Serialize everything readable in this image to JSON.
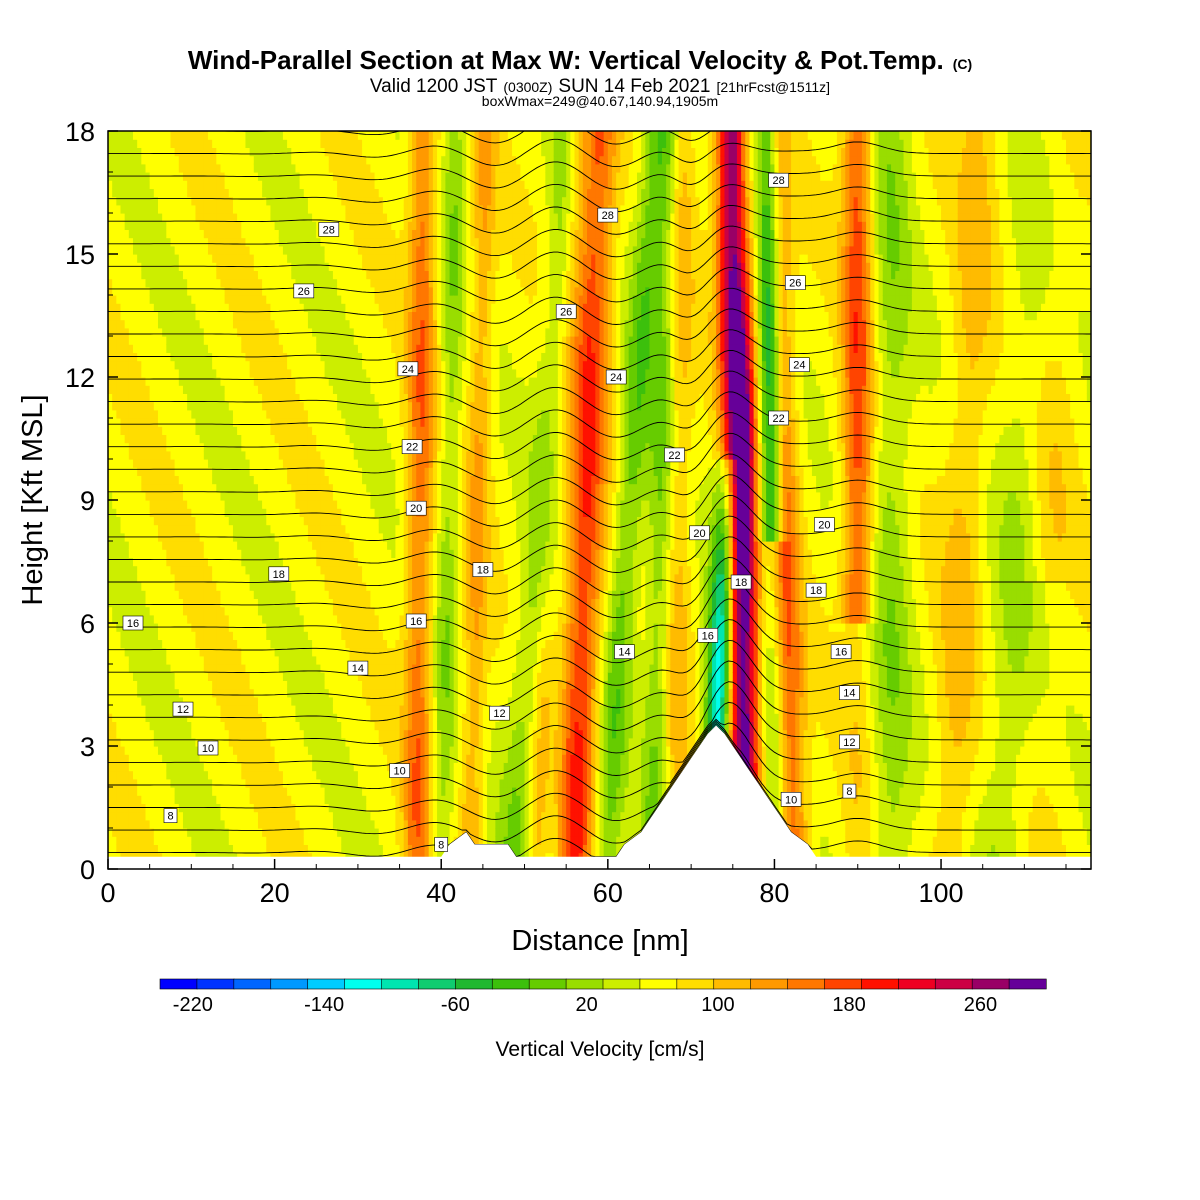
{
  "chart_data": {
    "type": "heatmap",
    "title": "Wind-Parallel Section at Max W: Vertical Velocity & Pot.Temp.",
    "title_mark": "(C)",
    "subtitle_parts": [
      "Valid 1200 JST",
      "(0300Z)",
      "SUN 14 Feb 2021",
      "[21hrFcst@1511z]"
    ],
    "subtitle2": "boxWmax=249@40.67,140.94,1905m",
    "xlabel": "Distance [nm]",
    "ylabel": "Height [Kft MSL]",
    "xlim": [
      0,
      118
    ],
    "ylim": [
      0,
      18
    ],
    "x_ticks": [
      "0",
      "20",
      "40",
      "60",
      "80",
      "100"
    ],
    "y_ticks": [
      "0",
      "3",
      "6",
      "9",
      "12",
      "15",
      "18"
    ],
    "colorbar": {
      "title": "Vertical Velocity [cm/s]",
      "min": -240,
      "max": 300,
      "step": 20,
      "colors": [
        "#0000ff",
        "#0033ff",
        "#0066ff",
        "#0099ff",
        "#00ccff",
        "#00ffee",
        "#00e5b0",
        "#10cc70",
        "#20b830",
        "#3cc00c",
        "#66cc00",
        "#99dd00",
        "#ccee00",
        "#ffff00",
        "#ffdd00",
        "#ffbb00",
        "#ff9900",
        "#ff7700",
        "#ff4400",
        "#ff1100",
        "#ee0022",
        "#cc0044",
        "#990066",
        "#660099"
      ],
      "tick_labels": [
        "-220",
        "-140",
        "-60",
        "20",
        "100",
        "180",
        "260"
      ]
    },
    "terrain_kft": [
      [
        0,
        0.3
      ],
      [
        40,
        0.3
      ],
      [
        41,
        0.6
      ],
      [
        43,
        0.9
      ],
      [
        44,
        0.6
      ],
      [
        48,
        0.6
      ],
      [
        49,
        0.3
      ],
      [
        61,
        0.3
      ],
      [
        62,
        0.6
      ],
      [
        64,
        0.9
      ],
      [
        65,
        1.2
      ],
      [
        66,
        1.5
      ],
      [
        67,
        1.8
      ],
      [
        68,
        2.1
      ],
      [
        69,
        2.4
      ],
      [
        70,
        2.7
      ],
      [
        71,
        3.0
      ],
      [
        72,
        3.3
      ],
      [
        73,
        3.5
      ],
      [
        74,
        3.3
      ],
      [
        75,
        3.0
      ],
      [
        76,
        2.7
      ],
      [
        77,
        2.4
      ],
      [
        78,
        2.1
      ],
      [
        79,
        1.8
      ],
      [
        80,
        1.5
      ],
      [
        81,
        1.2
      ],
      [
        82,
        0.9
      ],
      [
        84,
        0.6
      ],
      [
        85,
        0.3
      ],
      [
        118,
        0.3
      ]
    ],
    "theta_contours": [
      {
        "label": "8",
        "x": 7.5,
        "y": 1.3
      },
      {
        "label": "8",
        "x": 40,
        "y": 0.6
      },
      {
        "label": "8",
        "x": 89,
        "y": 1.9
      },
      {
        "label": "10",
        "x": 12,
        "y": 2.95
      },
      {
        "label": "10",
        "x": 35,
        "y": 2.4
      },
      {
        "label": "10",
        "x": 82,
        "y": 1.7
      },
      {
        "label": "12",
        "x": 9,
        "y": 3.9
      },
      {
        "label": "12",
        "x": 47,
        "y": 3.8
      },
      {
        "label": "12",
        "x": 89,
        "y": 3.1
      },
      {
        "label": "14",
        "x": 30,
        "y": 4.9
      },
      {
        "label": "14",
        "x": 62,
        "y": 5.3
      },
      {
        "label": "14",
        "x": 89,
        "y": 4.3
      },
      {
        "label": "16",
        "x": 3,
        "y": 6.0
      },
      {
        "label": "16",
        "x": 37,
        "y": 6.05
      },
      {
        "label": "16",
        "x": 72,
        "y": 5.7
      },
      {
        "label": "16",
        "x": 88,
        "y": 5.3
      },
      {
        "label": "18",
        "x": 20.5,
        "y": 7.2
      },
      {
        "label": "18",
        "x": 45,
        "y": 7.3
      },
      {
        "label": "18",
        "x": 76,
        "y": 7.0
      },
      {
        "label": "18",
        "x": 85,
        "y": 6.8
      },
      {
        "label": "20",
        "x": 37,
        "y": 8.8
      },
      {
        "label": "20",
        "x": 71,
        "y": 8.2
      },
      {
        "label": "20",
        "x": 86,
        "y": 8.4
      },
      {
        "label": "22",
        "x": 36.5,
        "y": 10.3
      },
      {
        "label": "22",
        "x": 68,
        "y": 10.1
      },
      {
        "label": "22",
        "x": 80.5,
        "y": 11.0
      },
      {
        "label": "24",
        "x": 36,
        "y": 12.2
      },
      {
        "label": "24",
        "x": 61,
        "y": 12.0
      },
      {
        "label": "24",
        "x": 83,
        "y": 12.3
      },
      {
        "label": "26",
        "x": 23.5,
        "y": 14.1
      },
      {
        "label": "26",
        "x": 55,
        "y": 13.6
      },
      {
        "label": "26",
        "x": 82.5,
        "y": 14.3
      },
      {
        "label": "28",
        "x": 26.5,
        "y": 15.6
      },
      {
        "label": "28",
        "x": 60,
        "y": 15.95
      },
      {
        "label": "28",
        "x": 80.5,
        "y": 16.8
      }
    ]
  }
}
